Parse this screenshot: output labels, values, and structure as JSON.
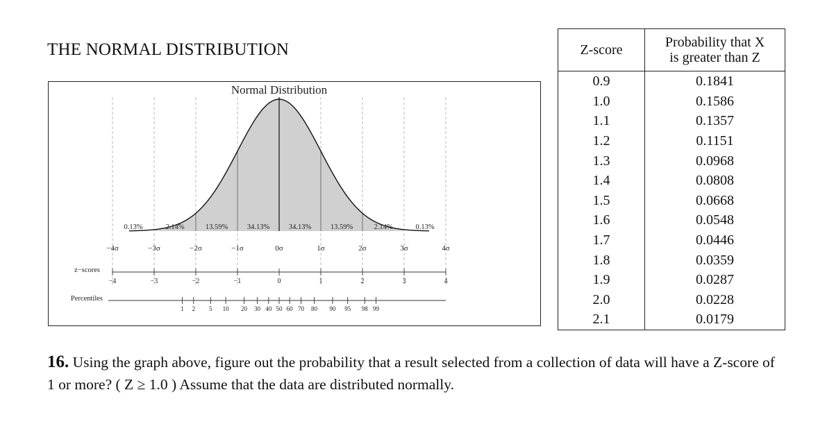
{
  "page": {
    "title": "THE NORMAL DISTRIBUTION"
  },
  "figure": {
    "title": "Normal Distribution",
    "percent_labels": [
      "0.13%",
      "2.14%",
      "13.59%",
      "34.13%",
      "34.13%",
      "13.59%",
      "2.14%",
      "0.13%"
    ],
    "sigma_labels": [
      "−4σ",
      "−3σ",
      "−2σ",
      "−1σ",
      "0σ",
      "1σ",
      "2σ",
      "3σ",
      "4σ"
    ],
    "zscore_row_label": "z−scores",
    "zscore_ticks": [
      "−4",
      "−3",
      "−2",
      "−1",
      "0",
      "1",
      "2",
      "3",
      "4"
    ],
    "percentile_row_label": "Percentiles",
    "percentile_ticks": [
      "1",
      "2",
      "5",
      "10",
      "20",
      "30",
      "40",
      "50",
      "60",
      "70",
      "80",
      "90",
      "95",
      "98",
      "99"
    ],
    "percentile_z": [
      -2.326,
      -2.054,
      -1.645,
      -1.282,
      -0.842,
      -0.524,
      -0.253,
      0,
      0.253,
      0.524,
      0.842,
      1.282,
      1.645,
      2.054,
      2.326
    ]
  },
  "table": {
    "header_z": "Z-score",
    "header_p_line1": "Probability that X",
    "header_p_line2": "is greater than Z",
    "rows": [
      {
        "z": "0.9",
        "p": "0.1841"
      },
      {
        "z": "1.0",
        "p": "0.1586"
      },
      {
        "z": "1.1",
        "p": "0.1357"
      },
      {
        "z": "1.2",
        "p": "0.1151"
      },
      {
        "z": "1.3",
        "p": "0.0968"
      },
      {
        "z": "1.4",
        "p": "0.0808"
      },
      {
        "z": "1.5",
        "p": "0.0668"
      },
      {
        "z": "1.6",
        "p": "0.0548"
      },
      {
        "z": "1.7",
        "p": "0.0446"
      },
      {
        "z": "1.8",
        "p": "0.0359"
      },
      {
        "z": "1.9",
        "p": "0.0287"
      },
      {
        "z": "2.0",
        "p": "0.0228"
      },
      {
        "z": "2.1",
        "p": "0.0179"
      }
    ]
  },
  "question": {
    "number": "16.",
    "text": " Using the graph above, figure out the probability that a result selected from a collection of data will have a Z-score of 1 or more? ( Z ≥ 1.0 ) Assume that the data are distributed normally."
  }
}
